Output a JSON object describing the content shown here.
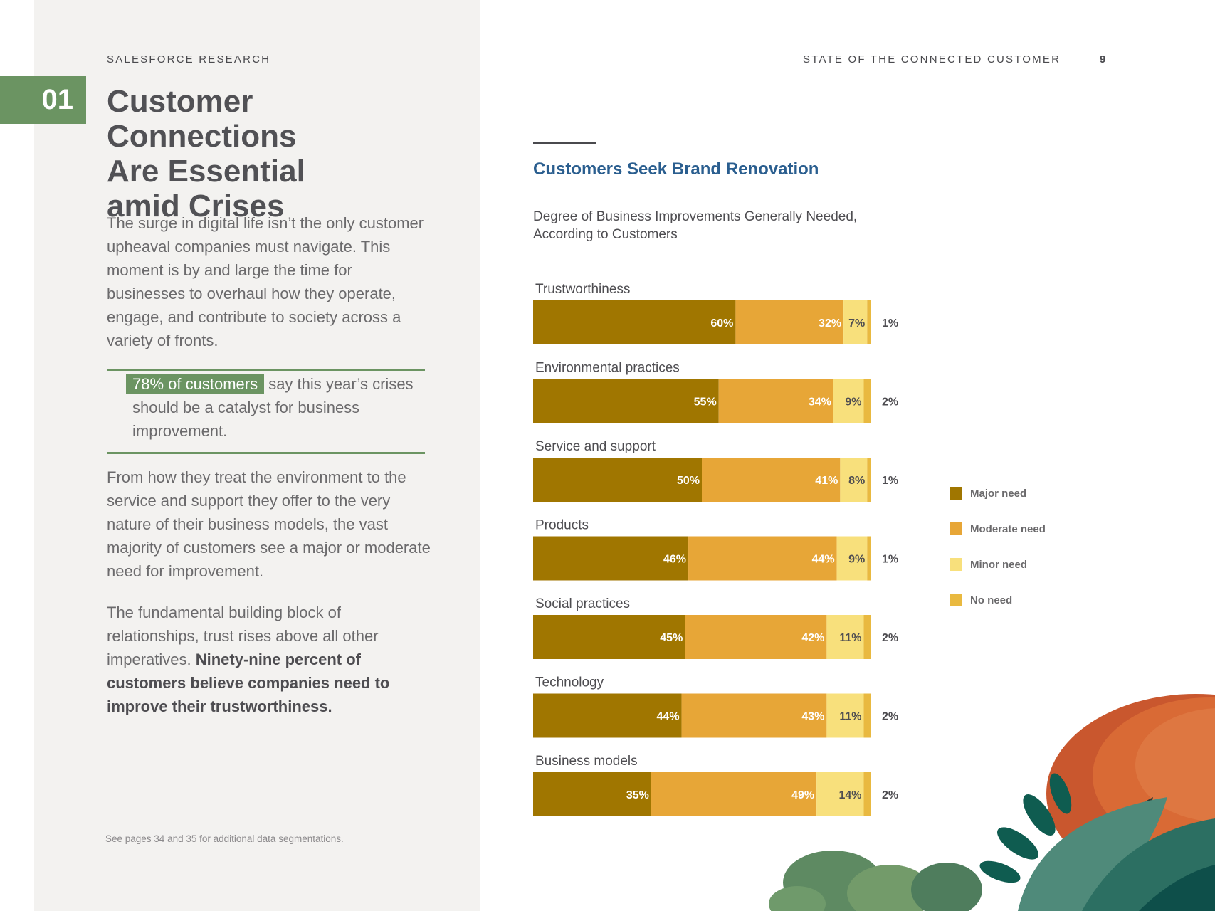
{
  "header": {
    "brand": "SALESFORCE RESEARCH",
    "report_title": "STATE OF THE CONNECTED CUSTOMER",
    "page_number": "9"
  },
  "section": {
    "number": "01",
    "headline_lines": [
      "Customer Connections",
      "Are Essential",
      "amid Crises"
    ]
  },
  "body": {
    "para1": "The surge in digital life isn’t the only customer upheaval companies must navigate. This moment is by and large the time for businesses to overhaul how they operate, engage, and contribute to society across a variety of fronts.",
    "callout_highlight": "78% of customers",
    "callout_rest": " say this year’s crises should be a catalyst for business improvement.",
    "para2": "From how they treat the environment to the service and support they offer to the very nature of their business models, the vast majority of customers see a major or moderate need for improvement.",
    "para3_plain": "The fundamental building block of relationships, trust rises above all other imperatives. ",
    "para3_bold": "Ninety-nine percent of customers believe companies need to improve their trustworthiness.",
    "footnote": "See pages 34 and 35 for additional data segmentations."
  },
  "chart_data": {
    "type": "bar",
    "orientation": "horizontal",
    "stacked": true,
    "title": "Customers Seek Brand Renovation",
    "subtitle": "Degree of Business Improvements Generally Needed, According to Customers",
    "xlim": [
      0,
      100
    ],
    "categories": [
      "Trustworthiness",
      "Environmental practices",
      "Service and support",
      "Products",
      "Social practices",
      "Technology",
      "Business models"
    ],
    "series": [
      {
        "name": "Major need",
        "color": "#a07600",
        "label_color": "#ffffff",
        "values": [
          60,
          55,
          50,
          46,
          45,
          44,
          35
        ]
      },
      {
        "name": "Moderate need",
        "color": "#e7a637",
        "label_color": "#ffffff",
        "values": [
          32,
          34,
          41,
          44,
          42,
          43,
          49
        ]
      },
      {
        "name": "Minor need",
        "color": "#f8e07c",
        "label_color": "#4e4d51",
        "values": [
          7,
          9,
          8,
          9,
          11,
          11,
          14
        ]
      },
      {
        "name": "No need",
        "color": "#e9b940",
        "label_color": "#4e4d51",
        "values": [
          1,
          2,
          1,
          1,
          2,
          2,
          2
        ]
      }
    ],
    "legend_position": "right"
  }
}
